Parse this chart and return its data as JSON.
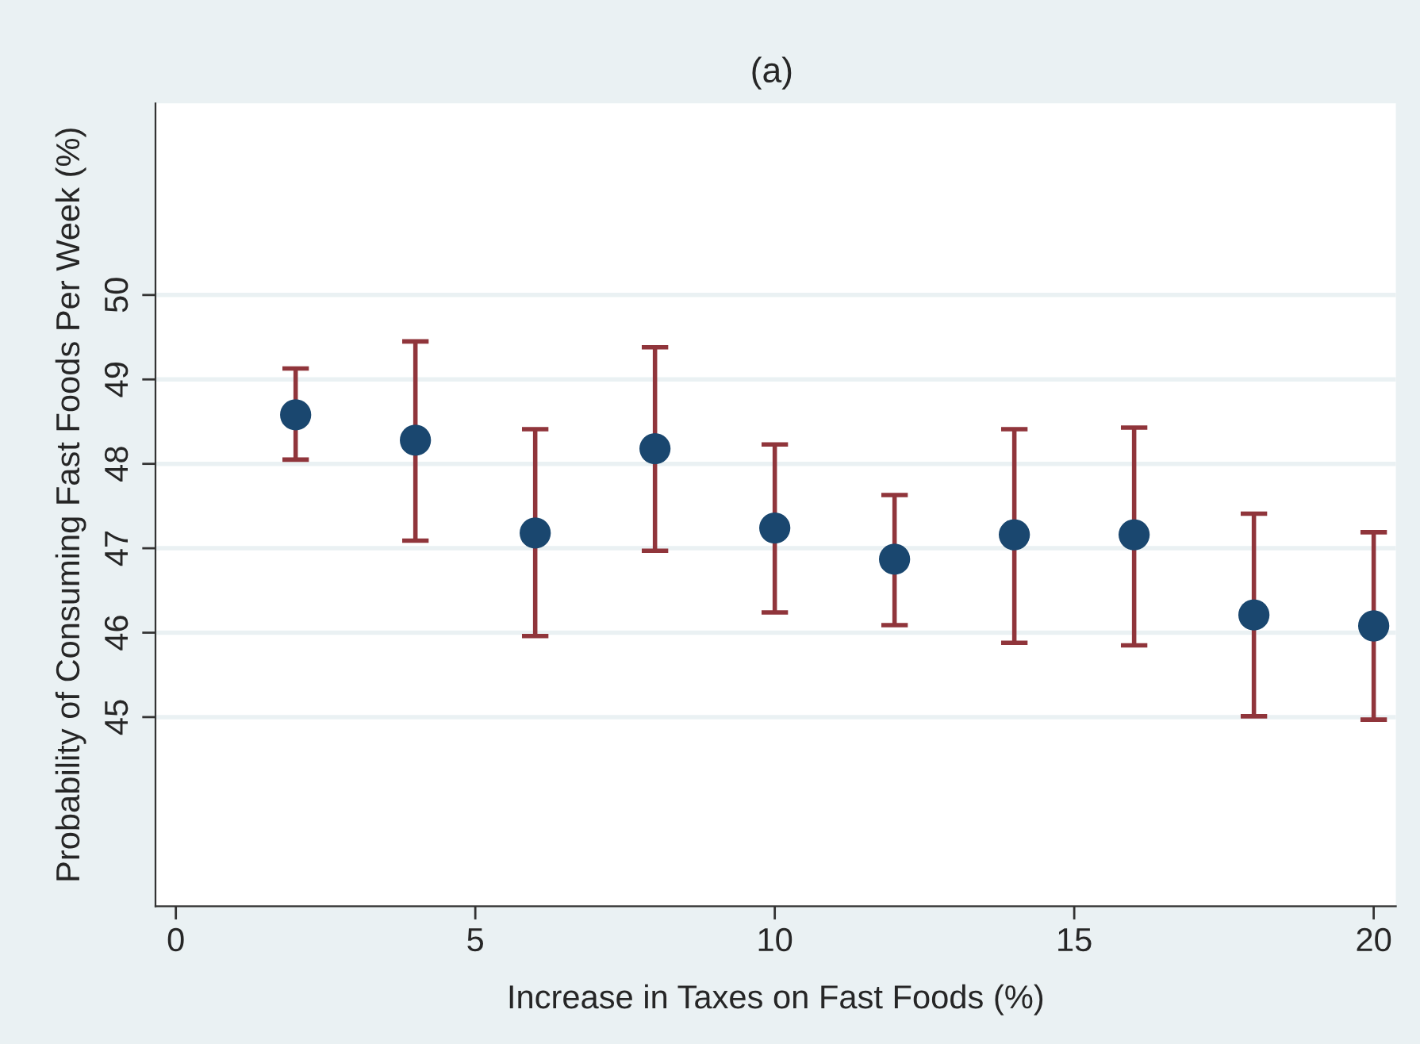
{
  "chart_data": {
    "type": "scatter",
    "title": "(a)",
    "xlabel": "Increase in Taxes on Fast Foods (%)",
    "ylabel": "Probability of Consuming Fast Foods Per Week (%)",
    "x": [
      2,
      4,
      6,
      8,
      10,
      12,
      14,
      16,
      18,
      20
    ],
    "series": [
      {
        "color": "#90353b",
        "colors": [
          "#1a476f",
          "#1a476f",
          "#1a476f",
          "#1a476f",
          "#1a476f",
          "#1a476f",
          "#1a476f",
          "#1a476f",
          "#1a476f",
          "#1a476f"
        ],
        "values": [
          48.58,
          48.28,
          47.18,
          48.18,
          47.24,
          46.87,
          47.16,
          47.16,
          46.21,
          46.08
        ],
        "errors": [
          [
            48.05,
            49.13
          ],
          [
            47.09,
            49.45
          ],
          [
            45.96,
            48.41
          ],
          [
            46.97,
            49.38
          ],
          [
            46.24,
            48.23
          ],
          [
            46.09,
            47.63
          ],
          [
            45.88,
            48.41
          ],
          [
            45.85,
            48.43
          ],
          [
            45.01,
            47.41
          ],
          [
            44.97,
            47.19
          ]
        ]
      }
    ],
    "xlim": [
      -0.34,
      20.37
    ],
    "xticks": [
      0,
      5,
      10,
      15,
      20
    ],
    "ylim": [
      42.76,
      52.27
    ],
    "yticks": [
      45,
      46,
      47,
      48,
      49,
      50
    ],
    "grid": "y",
    "marker": "circle",
    "legend": false
  }
}
